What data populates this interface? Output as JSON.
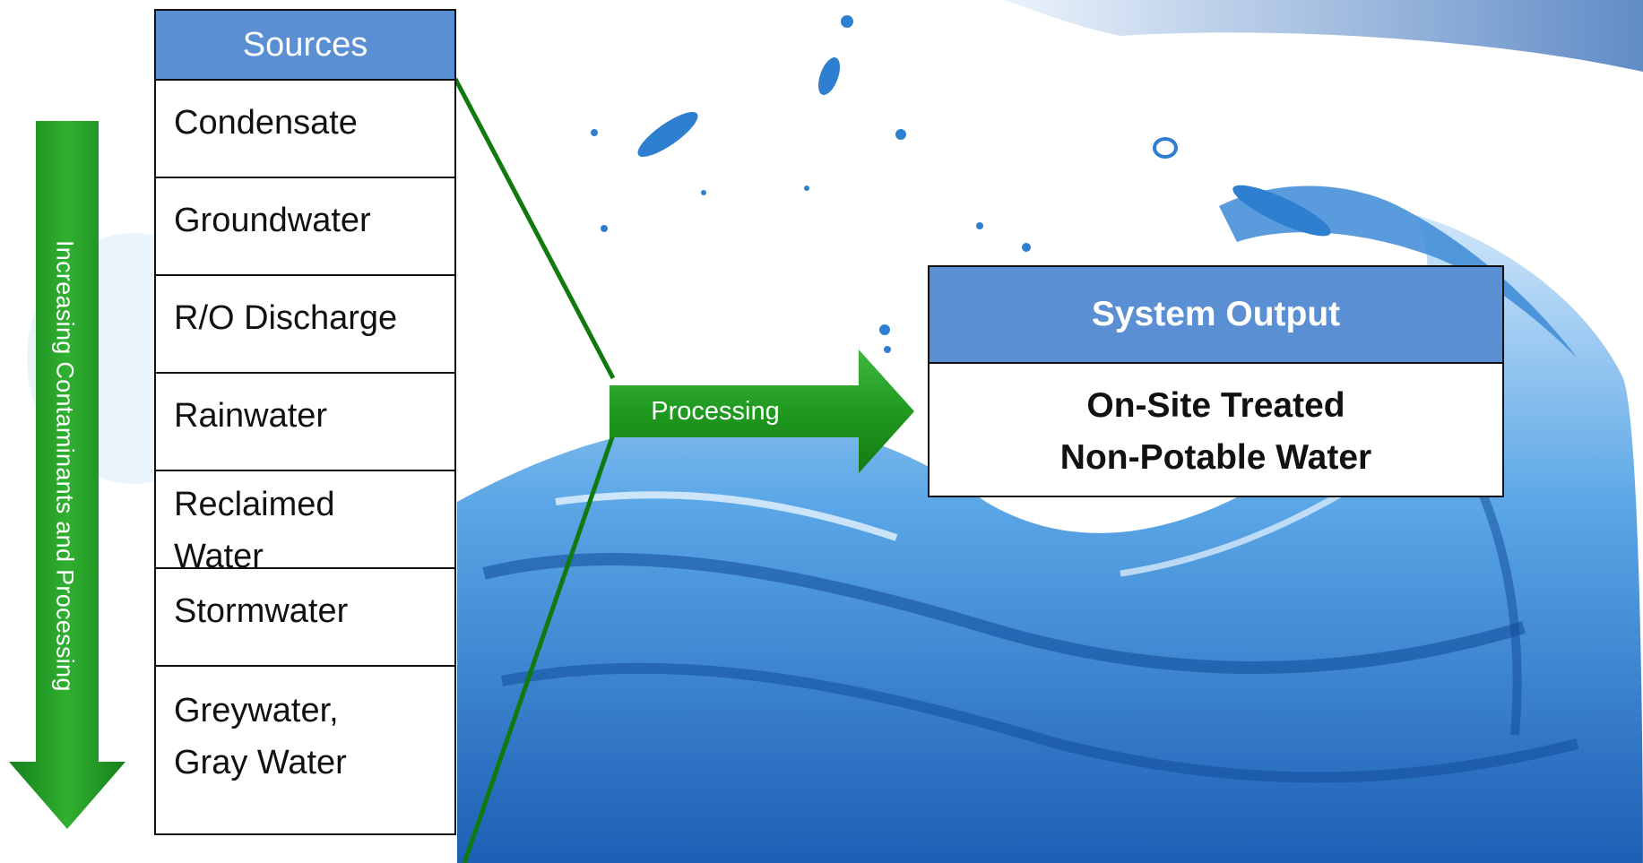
{
  "side_arrow": {
    "label": "Increasing Contaminants and Processing"
  },
  "sources": {
    "header": "Sources",
    "items": [
      {
        "line1": "Condensate",
        "line2": ""
      },
      {
        "line1": "Groundwater",
        "line2": ""
      },
      {
        "line1": "R/O Discharge",
        "line2": ""
      },
      {
        "line1": "Rainwater",
        "line2": ""
      },
      {
        "line1": "Reclaimed",
        "line2": "Water"
      },
      {
        "line1": "Stormwater",
        "line2": ""
      },
      {
        "line1": "Greywater,",
        "line2": "Gray Water"
      }
    ]
  },
  "processing": {
    "label": "Processing"
  },
  "output": {
    "header": "System Output",
    "line1": "On-Site Treated",
    "line2": "Non-Potable Water"
  },
  "colors": {
    "accent_blue": "#5b8fd3",
    "arrow_green": "#1e9a1e",
    "connector_green": "#0f7a0f",
    "water_blue": "#2f7fd0"
  }
}
